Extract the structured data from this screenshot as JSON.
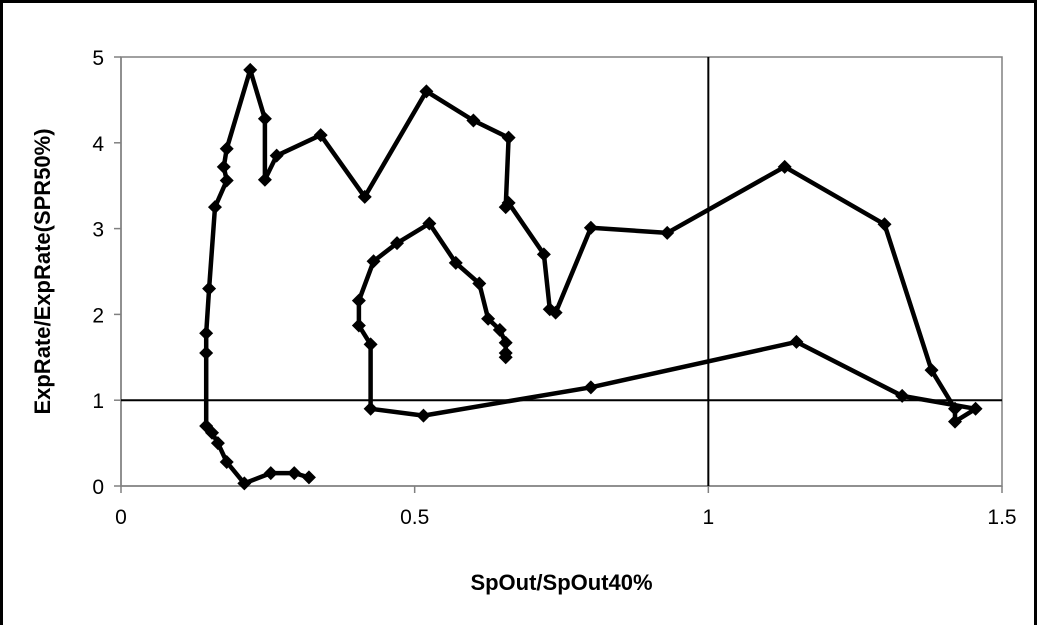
{
  "chart_data": {
    "type": "line",
    "title": "",
    "xlabel": "SpOut/SpOut40%",
    "ylabel": "ExpRate/ExpRate(SPR50%)",
    "xlim": [
      0,
      1.5
    ],
    "ylim": [
      0,
      5
    ],
    "x_ticks": [
      0,
      0.5,
      1,
      1.5
    ],
    "x_tick_labels": [
      "0",
      "0.5",
      "1",
      "1.5"
    ],
    "y_ticks": [
      0,
      1,
      2,
      3,
      4,
      5
    ],
    "y_tick_labels": [
      "0",
      "1",
      "2",
      "3",
      "4",
      "5"
    ],
    "grid": false,
    "reference_lines": {
      "x": 1,
      "y": 1
    },
    "marker": "diamond",
    "line_color": "#000000",
    "series": [
      {
        "points": [
          [
            0.32,
            0.1
          ],
          [
            0.295,
            0.15
          ],
          [
            0.255,
            0.15
          ],
          [
            0.21,
            0.03
          ],
          [
            0.18,
            0.28
          ],
          [
            0.165,
            0.5
          ],
          [
            0.155,
            0.62
          ],
          [
            0.145,
            0.7
          ],
          [
            0.145,
            1.55
          ],
          [
            0.145,
            1.78
          ],
          [
            0.15,
            2.3
          ],
          [
            0.16,
            3.25
          ],
          [
            0.18,
            3.56
          ],
          [
            0.175,
            3.72
          ],
          [
            0.18,
            3.93
          ],
          [
            0.22,
            4.85
          ],
          [
            0.245,
            4.28
          ],
          [
            0.245,
            3.57
          ],
          [
            0.265,
            3.85
          ],
          [
            0.34,
            4.09
          ],
          [
            0.415,
            3.37
          ],
          [
            0.52,
            4.6
          ],
          [
            0.6,
            4.26
          ],
          [
            0.66,
            4.06
          ],
          [
            0.655,
            3.25
          ],
          [
            0.66,
            3.3
          ],
          [
            0.72,
            2.7
          ],
          [
            0.73,
            2.06
          ],
          [
            0.74,
            2.02
          ],
          [
            0.8,
            3.01
          ],
          [
            0.93,
            2.95
          ],
          [
            1.13,
            3.72
          ],
          [
            1.3,
            3.05
          ],
          [
            1.38,
            1.35
          ],
          [
            1.42,
            0.9
          ],
          [
            1.42,
            0.75
          ],
          [
            1.455,
            0.9
          ],
          [
            1.33,
            1.05
          ],
          [
            1.15,
            1.68
          ],
          [
            0.8,
            1.15
          ],
          [
            0.515,
            0.82
          ],
          [
            0.425,
            0.9
          ],
          [
            0.425,
            1.65
          ],
          [
            0.405,
            1.87
          ],
          [
            0.405,
            2.16
          ],
          [
            0.43,
            2.62
          ],
          [
            0.47,
            2.83
          ],
          [
            0.525,
            3.06
          ],
          [
            0.57,
            2.6
          ],
          [
            0.61,
            2.36
          ],
          [
            0.625,
            1.95
          ],
          [
            0.645,
            1.82
          ],
          [
            0.655,
            1.67
          ],
          [
            0.655,
            1.55
          ],
          [
            0.655,
            1.5
          ]
        ]
      }
    ]
  }
}
